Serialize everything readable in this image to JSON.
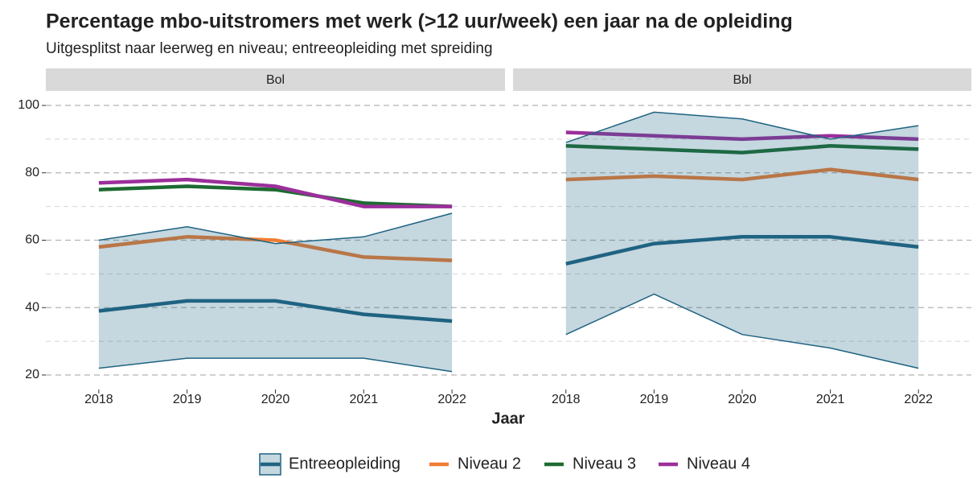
{
  "chart_data": {
    "type": "line",
    "title": "Percentage mbo-uitstromers met werk (>12 uur/week) een jaar na de opleiding",
    "subtitle": "Uitgesplitst naar leerweg en niveau; entreeopleiding met spreiding",
    "xlabel": "Jaar",
    "x": [
      2018,
      2019,
      2020,
      2021,
      2022
    ],
    "xlim": [
      2017.4,
      2022.6
    ],
    "xticks": [
      2018,
      2019,
      2020,
      2021,
      2022
    ],
    "ylim": [
      15.7,
      104.3
    ],
    "yticks": [
      20,
      40,
      60,
      80,
      100
    ],
    "yminor": [
      30,
      50,
      70,
      90
    ],
    "grid": true,
    "legend": "bottom",
    "band_color": "#1f6382",
    "panels": [
      {
        "strip": "Bol",
        "series": [
          {
            "name": "Entreeopleiding",
            "color": "#1f6382",
            "values": [
              39,
              42,
              42,
              38,
              36
            ],
            "low": [
              22,
              25,
              25,
              25,
              21
            ],
            "high": [
              60,
              64,
              59,
              61,
              68
            ]
          },
          {
            "name": "Niveau 2",
            "color": "#ef7d32",
            "values": [
              58,
              61,
              60,
              55,
              54
            ]
          },
          {
            "name": "Niveau 3",
            "color": "#1d6b30",
            "values": [
              75,
              76,
              75,
              71,
              70
            ]
          },
          {
            "name": "Niveau 4",
            "color": "#9b2f9b",
            "values": [
              77,
              78,
              76,
              70,
              70
            ]
          }
        ]
      },
      {
        "strip": "Bbl",
        "series": [
          {
            "name": "Entreeopleiding",
            "color": "#1f6382",
            "values": [
              53,
              59,
              61,
              61,
              58
            ],
            "low": [
              32,
              44,
              32,
              28,
              22
            ],
            "high": [
              89,
              98,
              96,
              90,
              94
            ]
          },
          {
            "name": "Niveau 2",
            "color": "#ef7d32",
            "values": [
              78,
              79,
              78,
              81,
              78
            ]
          },
          {
            "name": "Niveau 3",
            "color": "#1d6b30",
            "values": [
              88,
              87,
              86,
              88,
              87
            ]
          },
          {
            "name": "Niveau 4",
            "color": "#9b2f9b",
            "values": [
              92,
              91,
              90,
              91,
              90
            ]
          }
        ]
      }
    ]
  }
}
